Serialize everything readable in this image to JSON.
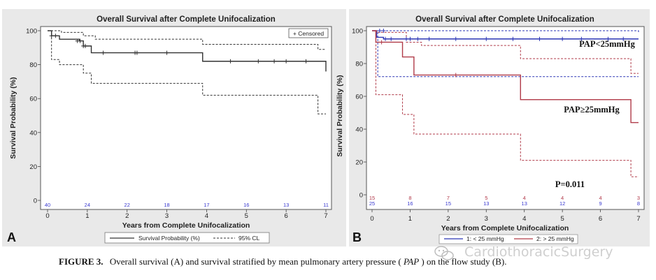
{
  "caption": {
    "label": "FIGURE 3.",
    "text_before": "Overall survival (A) and survival stratified by mean pulmonary artery pressure (",
    "text_italic": "PAP",
    "text_after": ") on the flow study (B)."
  },
  "watermark": {
    "text": "CardiothoracicSurgery",
    "icon": "wechat-icon"
  },
  "colors": {
    "panel_bg": "#e9e9e9",
    "series_low": "#2b35b5",
    "series_high": "#b03a48",
    "overall": "#333333",
    "risk_low": "#3a3ad0",
    "risk_high": "#b23a4a"
  },
  "chart_data": [
    {
      "panel_label": "A",
      "type": "line",
      "title": "Overall Survival after Complete Unifocalization",
      "xlabel": "Years from Complete Unifocalization",
      "ylabel": "Survival Probability (%)",
      "xlim": [
        0,
        7
      ],
      "ylim": [
        0,
        100
      ],
      "xticks": [
        "0",
        "1",
        "2",
        "3",
        "4",
        "5",
        "6",
        "7"
      ],
      "yticks": [
        "0",
        "20",
        "40",
        "60",
        "80",
        "100"
      ],
      "censored_label": "+ Censored",
      "legend": [
        "Survival Probability (%)",
        "95% CL"
      ],
      "series": [
        {
          "name": "Survival Probability (%)",
          "style": "step",
          "x": [
            0,
            0.1,
            0.3,
            0.8,
            0.9,
            1.1,
            3.9,
            7.0
          ],
          "y": [
            100,
            97,
            95,
            94,
            91,
            87,
            82,
            76
          ]
        },
        {
          "name": "95% CL upper",
          "style": "dashed",
          "x": [
            0,
            0.35,
            0.9,
            1.2,
            3.9,
            6.8,
            7.0
          ],
          "y": [
            100,
            99,
            97,
            95,
            92,
            89,
            89
          ]
        },
        {
          "name": "95% CL lower",
          "style": "dashed",
          "x": [
            0,
            0.1,
            0.3,
            0.9,
            1.1,
            3.9,
            6.8,
            7.0
          ],
          "y": [
            100,
            83,
            80,
            75,
            69,
            62,
            51,
            51
          ]
        }
      ],
      "censored": {
        "x": [
          0.1,
          0.2,
          0.75,
          0.82,
          0.9,
          0.95,
          1.4,
          2.2,
          2.25,
          3.0,
          4.6,
          5.3,
          5.7,
          6.0,
          6.5
        ],
        "y": [
          97,
          97,
          94,
          94,
          91,
          91,
          87,
          87,
          87,
          87,
          82,
          82,
          82,
          82,
          82
        ]
      },
      "at_risk": [
        {
          "values": [
            "40",
            "24",
            "22",
            "18",
            "17",
            "16",
            "13",
            "11"
          ]
        }
      ]
    },
    {
      "panel_label": "B",
      "type": "line",
      "title": "Overall Survival after Complete Unifocalization",
      "xlabel": "Years from Complete Unifocalization",
      "ylabel": "Survival Probability (%)",
      "xlim": [
        0,
        7
      ],
      "ylim": [
        0,
        100
      ],
      "xticks": [
        "0",
        "1",
        "2",
        "3",
        "4",
        "5",
        "6",
        "7"
      ],
      "yticks": [
        "0",
        "20",
        "40",
        "60",
        "80",
        "100"
      ],
      "annotations": [
        "PAP<25mmHg",
        "PAP≥25mmHg",
        "P=0.011"
      ],
      "legend": [
        "1: < 25 mmHg",
        "2: > 25 mmHg"
      ],
      "series": [
        {
          "name": "1: < 25 mmHg",
          "group": "low",
          "style": "step",
          "x": [
            0,
            0.12,
            0.3,
            7.0
          ],
          "y": [
            100,
            96,
            95,
            95
          ]
        },
        {
          "name": "1: < 25 mmHg 95% CL upper",
          "group": "low",
          "style": "dashed",
          "x": [
            0,
            7.0
          ],
          "y": [
            100,
            99
          ]
        },
        {
          "name": "1: < 25 mmHg 95% CL lower",
          "group": "low",
          "style": "dashed",
          "x": [
            0,
            0.15,
            7.0
          ],
          "y": [
            100,
            72,
            72
          ]
        },
        {
          "name": "2: > 25 mmHg",
          "group": "high",
          "style": "step",
          "x": [
            0,
            0.1,
            0.8,
            1.1,
            3.9,
            6.8,
            7.0
          ],
          "y": [
            100,
            93,
            84,
            73,
            58,
            44,
            44
          ]
        },
        {
          "name": "2: > 25 mmHg 95% CL upper",
          "group": "high",
          "style": "dashed",
          "x": [
            0,
            0.12,
            0.9,
            1.3,
            3.9,
            6.8,
            7.0
          ],
          "y": [
            100,
            99,
            93,
            91,
            83,
            74,
            74
          ]
        },
        {
          "name": "2: > 25 mmHg 95% CL lower",
          "group": "high",
          "style": "dashed",
          "x": [
            0,
            0.1,
            0.8,
            1.1,
            3.9,
            6.8,
            7.0
          ],
          "y": [
            100,
            61,
            49,
            37,
            21,
            11,
            11
          ]
        }
      ],
      "censored_low": {
        "x": [
          0.2,
          0.3,
          0.35,
          0.5,
          0.9,
          1.0,
          1.2,
          1.5,
          2.2,
          3.0,
          3.7,
          4.4,
          5.0,
          5.5,
          6.2,
          6.6
        ],
        "y": [
          100,
          100,
          95,
          95,
          95,
          95,
          95,
          95,
          95,
          95,
          95,
          95,
          95,
          95,
          95,
          95
        ]
      },
      "censored_high": {
        "x": [
          0.25,
          2.2
        ],
        "y": [
          93,
          73
        ]
      },
      "at_risk": [
        {
          "group": "high",
          "values": [
            "15",
            "8",
            "7",
            "5",
            "4",
            "4",
            "4",
            "3"
          ]
        },
        {
          "group": "low",
          "values": [
            "25",
            "16",
            "15",
            "13",
            "13",
            "12",
            "9",
            "8"
          ]
        }
      ]
    }
  ]
}
